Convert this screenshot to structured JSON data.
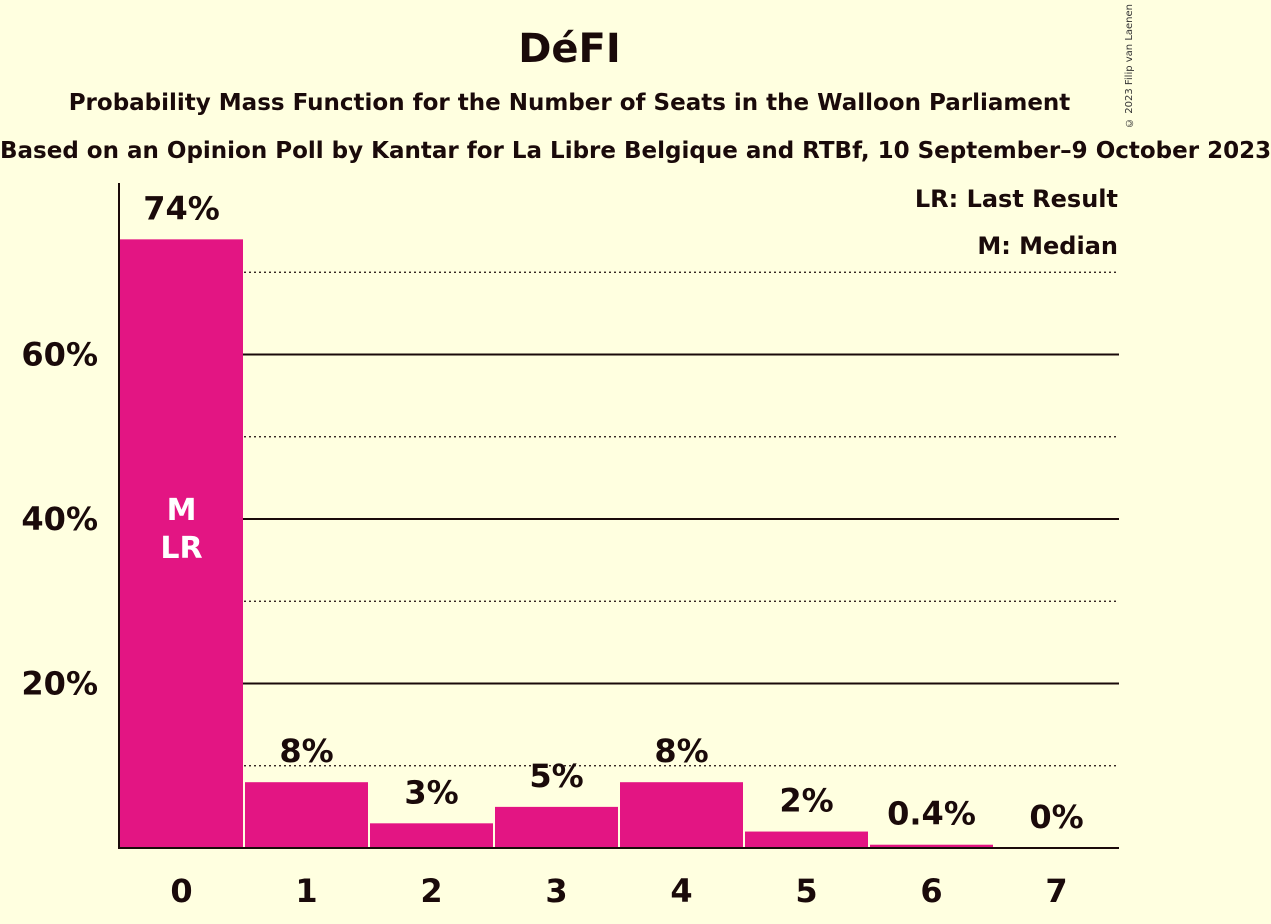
{
  "header": {
    "title": "DéFI",
    "subtitle": "Probability Mass Function for the Number of Seats in the Walloon Parliament",
    "subtitle2": "Based on an Opinion Poll by Kantar for La Libre Belgique and RTBf, 10 September–9 October 2023",
    "copyright": "© 2023 Filip van Laenen"
  },
  "legend": {
    "last_result": "LR: Last Result",
    "median": "M: Median"
  },
  "colors": {
    "background": "#ffffe0",
    "bar": "#e31583",
    "text": "#1a0a0a"
  },
  "chart_data": {
    "type": "bar",
    "categories": [
      "0",
      "1",
      "2",
      "3",
      "4",
      "5",
      "6",
      "7"
    ],
    "values": [
      74,
      8,
      3,
      5,
      8,
      2,
      0.4,
      0
    ],
    "value_labels": [
      "74%",
      "8%",
      "3%",
      "5%",
      "8%",
      "2%",
      "0.4%",
      "0%"
    ],
    "ylim": [
      0,
      80
    ],
    "yticks": [
      20,
      40,
      60
    ],
    "ytick_labels": [
      "20%",
      "40%",
      "60%"
    ],
    "minor_gridlines": [
      10,
      30,
      50,
      70
    ],
    "bar_annotations": [
      {
        "category": "0",
        "lines": [
          "M",
          "LR"
        ]
      }
    ]
  }
}
